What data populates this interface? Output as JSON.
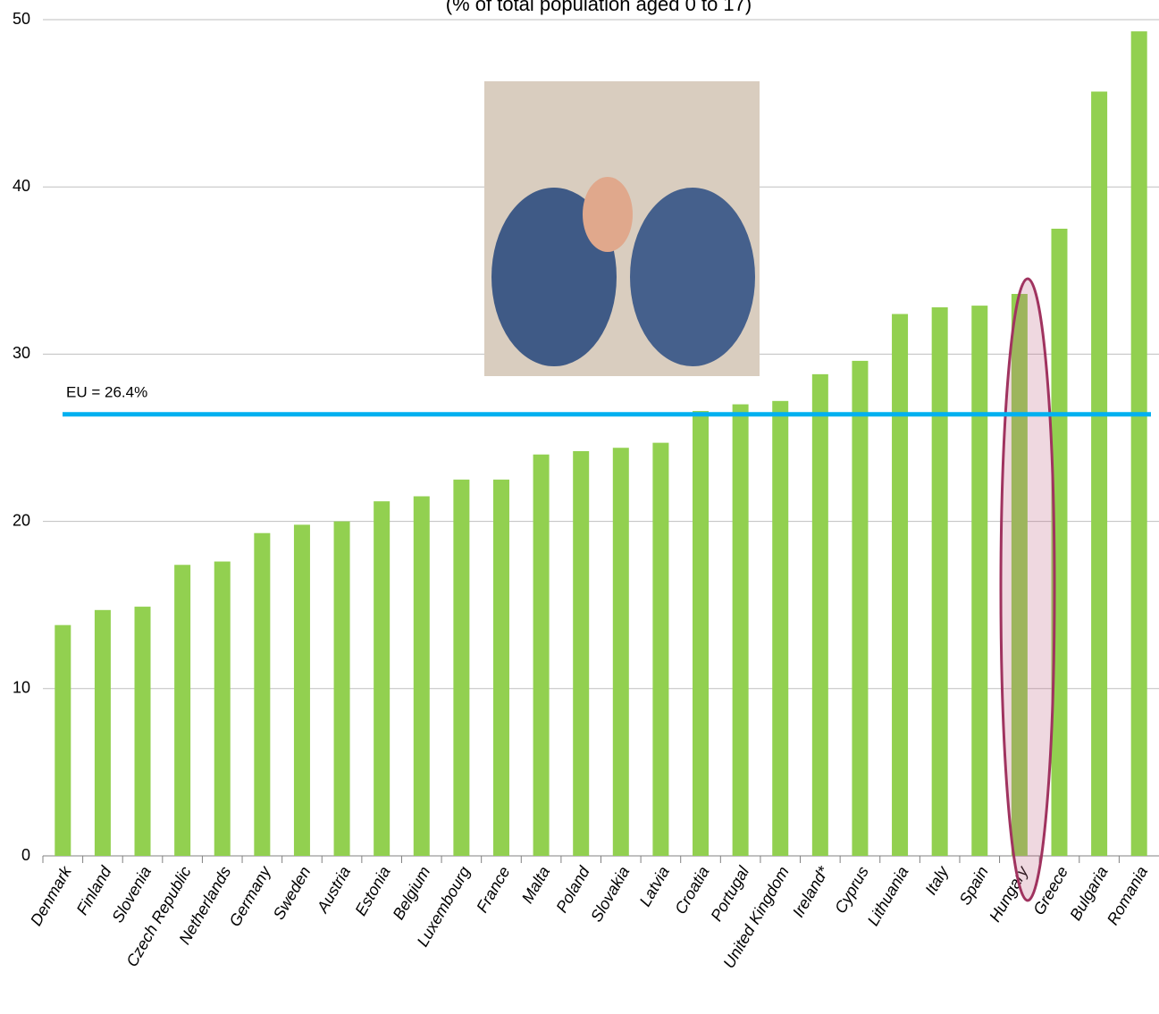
{
  "chart_data": {
    "type": "bar",
    "subtitle": "(% of total population  aged 0 to 17)",
    "categories": [
      "Denmark",
      "Finland",
      "Slovenia",
      "Czech Republic",
      "Netherlands",
      "Germany",
      "Sweden",
      "Austria",
      "Estonia",
      "Belgium",
      "Luxembourg",
      "France",
      "Malta",
      "Poland",
      "Slovakia",
      "Latvia",
      "Croatia",
      "Portugal",
      "United Kingdom",
      "Ireland*",
      "Cyprus",
      "Lithuania",
      "Italy",
      "Spain",
      "Hungary",
      "Greece",
      "Bulgaria",
      "Romania"
    ],
    "values": [
      13.8,
      14.7,
      14.9,
      17.4,
      17.6,
      19.3,
      19.8,
      20.0,
      21.2,
      21.5,
      22.5,
      22.5,
      24.0,
      24.2,
      24.4,
      24.7,
      26.6,
      27.0,
      27.2,
      28.8,
      29.6,
      32.4,
      32.8,
      32.9,
      33.6,
      37.5,
      45.7,
      49.3
    ],
    "color": "#92d050",
    "ylim": [
      0,
      50
    ],
    "yticks": [
      0,
      10,
      20,
      30,
      40,
      50
    ],
    "grid": true,
    "reference_line": {
      "value": 26.4,
      "label": "EU = 26.4%",
      "color": "#00b0f0"
    }
  }
}
